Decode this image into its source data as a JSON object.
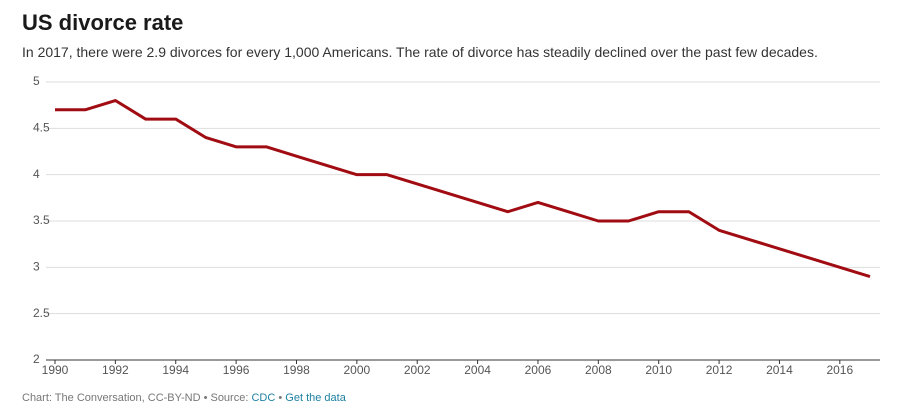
{
  "chart_data": {
    "type": "line",
    "title": "US divorce rate",
    "subtitle": "In 2017, there were 2.9 divorces for every 1,000 Americans. The rate of divorce has steadily declined over the past few decades.",
    "x": [
      1990,
      1991,
      1992,
      1993,
      1994,
      1995,
      1996,
      1997,
      1998,
      1999,
      2000,
      2001,
      2002,
      2003,
      2004,
      2005,
      2006,
      2007,
      2008,
      2009,
      2010,
      2011,
      2012,
      2013,
      2014,
      2015,
      2016,
      2017
    ],
    "series": [
      {
        "name": "Divorce rate",
        "color": "#a00c12",
        "values": [
          4.7,
          4.7,
          4.8,
          4.6,
          4.6,
          4.4,
          4.3,
          4.3,
          4.2,
          4.1,
          4.0,
          4.0,
          3.9,
          3.8,
          3.7,
          3.6,
          3.7,
          3.6,
          3.5,
          3.5,
          3.6,
          3.6,
          3.4,
          3.3,
          3.2,
          3.1,
          3.0,
          2.9
        ]
      }
    ],
    "xlim": [
      1990,
      2017
    ],
    "xticks": [
      1990,
      1992,
      1994,
      1996,
      1998,
      2000,
      2002,
      2004,
      2006,
      2008,
      2010,
      2012,
      2014,
      2016
    ],
    "ylim": [
      2,
      5
    ],
    "yticks": [
      2,
      2.5,
      3,
      3.5,
      4,
      4.5,
      5
    ],
    "grid": true,
    "footer": {
      "credit": "Chart: The Conversation, CC-BY-ND • Source:",
      "source": "CDC",
      "separator": "•",
      "link": "Get the data"
    }
  }
}
